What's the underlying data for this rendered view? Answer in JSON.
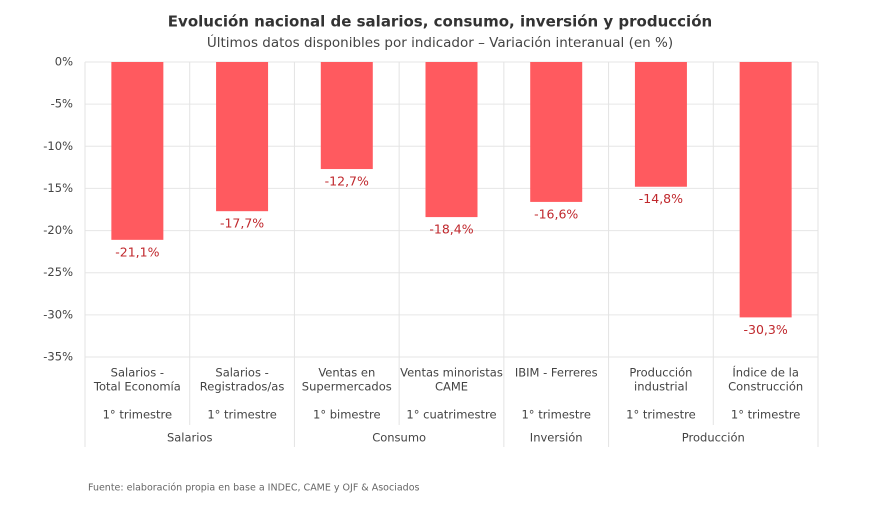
{
  "chart_data": {
    "type": "bar",
    "title": "Evolución nacional de salarios, consumo, inversión y producción",
    "subtitle": "Últimos datos disponibles por indicador – Variación interanual (en %)",
    "categories": [
      [
        "Salarios -",
        "Total Economía"
      ],
      [
        "Salarios -",
        "Registrados/as"
      ],
      [
        "Ventas en",
        "Supermercados"
      ],
      [
        "Ventas minoristas",
        "CAME"
      ],
      [
        "IBIM - Ferreres"
      ],
      [
        "Producción",
        "industrial"
      ],
      [
        "Índice de la",
        "Construcción"
      ]
    ],
    "periods": [
      "1° trimestre",
      "1° trimestre",
      "1° bimestre",
      "1° cuatrimestre",
      "1° trimestre",
      "1° trimestre",
      "1° trimestre"
    ],
    "groups": [
      {
        "name": "Salarios",
        "count": 2
      },
      {
        "name": "Consumo",
        "count": 2
      },
      {
        "name": "Inversión",
        "count": 1
      },
      {
        "name": "Producción",
        "count": 2
      }
    ],
    "values": [
      -21.1,
      -17.7,
      -12.7,
      -18.4,
      -16.6,
      -14.8,
      -30.3
    ],
    "value_labels": [
      "-21,1%",
      "-17,7%",
      "-12,7%",
      "-18,4%",
      "-16,6%",
      "-14,8%",
      "-30,3%"
    ],
    "color": "#ff5a5f",
    "label_color": "#c0282d",
    "ylim": [
      -35,
      0
    ],
    "yticks": [
      {
        "value": 0,
        "label": "0%"
      },
      {
        "value": -5,
        "label": "-5%"
      },
      {
        "value": -10,
        "label": "-10%"
      },
      {
        "value": -15,
        "label": "-15%"
      },
      {
        "value": -20,
        "label": "-20%"
      },
      {
        "value": -25,
        "label": "-25%"
      },
      {
        "value": -30,
        "label": "-30%"
      },
      {
        "value": -35,
        "label": "-35%"
      }
    ],
    "grid": true,
    "source": "Fuente: elaboración propia en base a INDEC, CAME y OJF & Asociados"
  }
}
